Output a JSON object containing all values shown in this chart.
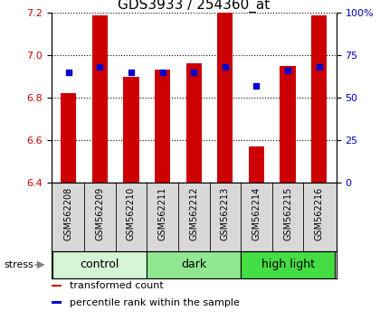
{
  "title": "GDS3933 / 254360_at",
  "samples": [
    "GSM562208",
    "GSM562209",
    "GSM562210",
    "GSM562211",
    "GSM562212",
    "GSM562213",
    "GSM562214",
    "GSM562215",
    "GSM562216"
  ],
  "red_values": [
    6.82,
    7.19,
    6.9,
    6.93,
    6.96,
    7.2,
    6.57,
    6.95,
    7.19
  ],
  "blue_percentiles": [
    65,
    68,
    65,
    65,
    65,
    68,
    57,
    66,
    68
  ],
  "y_min": 6.4,
  "y_max": 7.2,
  "y_ticks": [
    6.4,
    6.6,
    6.8,
    7.0,
    7.2
  ],
  "y2_ticks": [
    0,
    25,
    50,
    75,
    100
  ],
  "y2_labels": [
    "0",
    "25",
    "50",
    "75",
    "100%"
  ],
  "groups": [
    {
      "label": "control",
      "indices": [
        0,
        1,
        2
      ],
      "color": "#d4f5d4"
    },
    {
      "label": "dark",
      "indices": [
        3,
        4,
        5
      ],
      "color": "#90e890"
    },
    {
      "label": "high light",
      "indices": [
        6,
        7,
        8
      ],
      "color": "#44dd44"
    }
  ],
  "bar_color": "#cc0000",
  "dot_color": "#0000cc",
  "bar_width": 0.5,
  "legend_items": [
    {
      "label": "transformed count",
      "color": "#cc0000"
    },
    {
      "label": "percentile rank within the sample",
      "color": "#0000cc"
    }
  ],
  "title_fontsize": 11,
  "tick_fontsize": 8,
  "sample_fontsize": 7,
  "group_fontsize": 9,
  "legend_fontsize": 8,
  "sample_bg_color": "#d8d8d8",
  "plot_bg_color": "#ffffff",
  "fig_bg_color": "#ffffff"
}
